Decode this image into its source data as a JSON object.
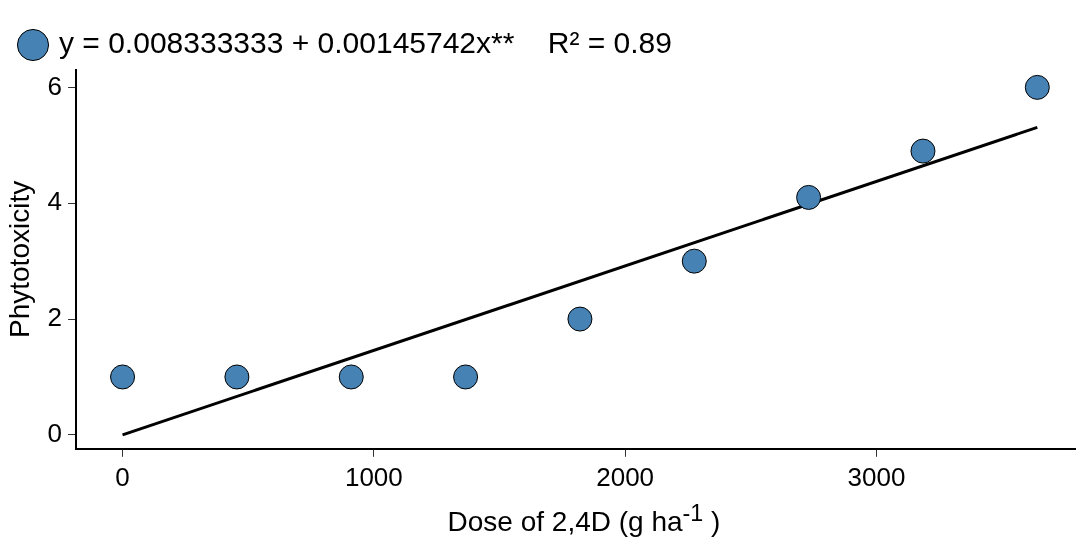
{
  "chart_data": {
    "type": "scatter",
    "xlabel": "Dose of 2,4D (g ha$^{-1}$ )",
    "ylabel": "Phytotoxicity",
    "x": [
      0,
      455,
      910,
      1365,
      1820,
      2275,
      2730,
      3185,
      3640
    ],
    "series": [
      {
        "name": "y = 0.008333333 + 0.00145742x**    R² = 0.89",
        "color": "#4682b4",
        "values": [
          1,
          1,
          1,
          1,
          2,
          3,
          4.1,
          4.9,
          6
        ],
        "marker": "circle"
      },
      {
        "type": "line",
        "color": "#000000",
        "x": [
          0,
          3640
        ],
        "values": [
          0,
          5.31
        ],
        "line_style": "solid"
      }
    ],
    "xlim": [
      -185,
      3790
    ],
    "ylim": [
      -0.24,
      6.3
    ],
    "xticks": [
      0,
      1000,
      2000,
      3000
    ],
    "yticks": [
      0,
      2,
      4,
      6
    ],
    "grid": false,
    "legend": "top left"
  }
}
